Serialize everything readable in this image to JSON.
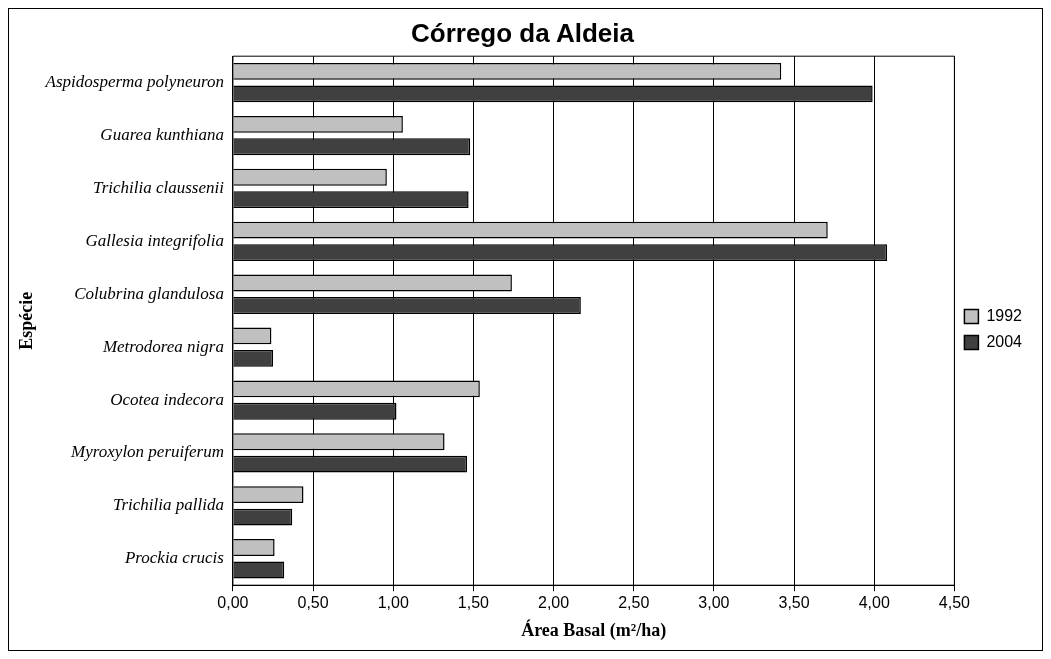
{
  "chart_data": {
    "type": "bar",
    "orientation": "horizontal",
    "title": "Córrego da Aldeia",
    "xlabel": "Área Basal (m²/ha)",
    "ylabel": "Espécie",
    "categories": [
      "Aspidosperma polyneuron",
      "Guarea kunthiana",
      "Trichilia claussenii",
      "Gallesia integrifolia",
      "Colubrina glandulosa",
      "Metrodorea nigra",
      "Ocotea indecora",
      "Myroxylon peruiferum",
      "Trichilia pallida",
      "Prockia crucis"
    ],
    "series": [
      {
        "name": "1992",
        "color": "#c0c0c0",
        "values": [
          3.42,
          1.06,
          0.96,
          3.71,
          1.74,
          0.24,
          1.54,
          1.32,
          0.44,
          0.26
        ]
      },
      {
        "name": "2004",
        "color": "#404040",
        "values": [
          3.99,
          1.48,
          1.47,
          4.08,
          2.17,
          0.25,
          1.02,
          1.46,
          0.37,
          0.32
        ]
      }
    ],
    "xlim": [
      0,
      4.5
    ],
    "xticks": [
      {
        "value": 0,
        "label": "0,00"
      },
      {
        "value": 0.5,
        "label": "0,50"
      },
      {
        "value": 1,
        "label": "1,00"
      },
      {
        "value": 1.5,
        "label": "1,50"
      },
      {
        "value": 2,
        "label": "2,00"
      },
      {
        "value": 2.5,
        "label": "2,50"
      },
      {
        "value": 3,
        "label": "3,00"
      },
      {
        "value": 3.5,
        "label": "3,50"
      },
      {
        "value": 4,
        "label": "4,00"
      },
      {
        "value": 4.5,
        "label": "4,50"
      }
    ],
    "grid": "x",
    "legend": "right"
  }
}
